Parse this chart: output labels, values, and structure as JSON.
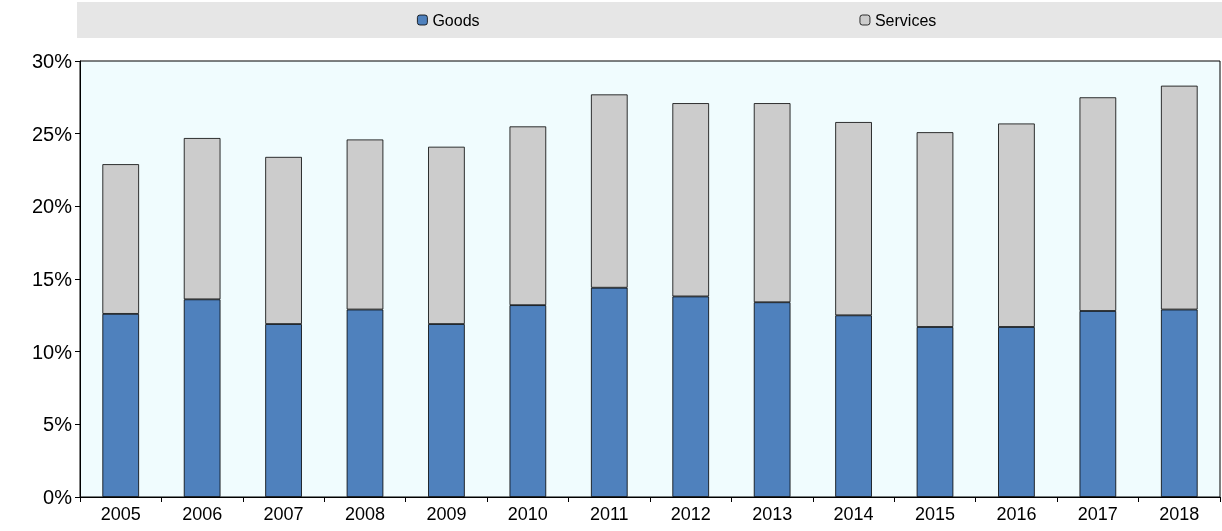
{
  "chart_data": {
    "type": "bar",
    "stacked": true,
    "categories": [
      "2005",
      "2006",
      "2007",
      "2008",
      "2009",
      "2010",
      "2011",
      "2012",
      "2013",
      "2014",
      "2015",
      "2016",
      "2017",
      "2018"
    ],
    "series": [
      {
        "name": "Goods",
        "color": "#4f81bd",
        "values": [
          12.6,
          13.6,
          11.9,
          12.9,
          11.9,
          13.2,
          14.4,
          13.8,
          13.4,
          12.5,
          11.7,
          11.7,
          12.8,
          12.9
        ]
      },
      {
        "name": "Services",
        "color": "#cccccc",
        "values": [
          10.3,
          11.1,
          11.5,
          11.7,
          12.2,
          12.3,
          13.3,
          13.3,
          13.7,
          13.3,
          13.4,
          14.0,
          14.7,
          15.4
        ]
      }
    ],
    "ylim": [
      0,
      30
    ],
    "yticks": [
      {
        "value": 0,
        "label": "0%"
      },
      {
        "value": 5,
        "label": "5%"
      },
      {
        "value": 10,
        "label": "10%"
      },
      {
        "value": 15,
        "label": "15%"
      },
      {
        "value": 20,
        "label": "20%"
      },
      {
        "value": 25,
        "label": "25%"
      },
      {
        "value": 30,
        "label": "30%"
      }
    ],
    "grid": false,
    "legend": "top"
  }
}
